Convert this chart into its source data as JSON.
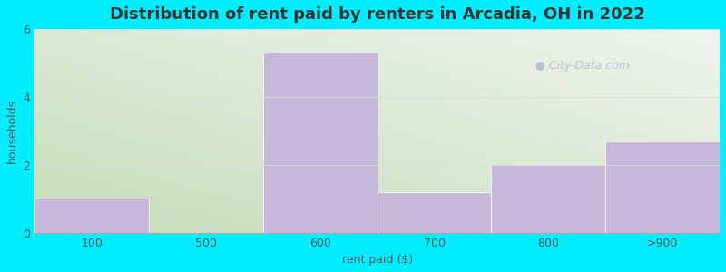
{
  "title": "Distribution of rent paid by renters in Arcadia, OH in 2022",
  "xlabel": "rent paid ($)",
  "ylabel": "households",
  "categories": [
    "100",
    "500",
    "600",
    "700",
    "800",
    ">900"
  ],
  "values": [
    1.0,
    0.0,
    5.3,
    1.2,
    2.0,
    2.7
  ],
  "bar_color": "#c5b8d8",
  "bar_edge_color": "#c5b8d8",
  "ylim": [
    0,
    6
  ],
  "yticks": [
    0,
    2,
    4,
    6
  ],
  "title_fontsize": 13,
  "label_fontsize": 9,
  "tick_fontsize": 9,
  "bg_color_topleft": "#c5ddb8",
  "bg_color_bottomright": "#f0f4f0",
  "grid_color": "#dddddd",
  "watermark_text": "City-Data.com",
  "watermark_color": "#b0b8c8",
  "figure_bg": "#00eeff",
  "title_color": "#333333",
  "axis_text_color": "#555555"
}
